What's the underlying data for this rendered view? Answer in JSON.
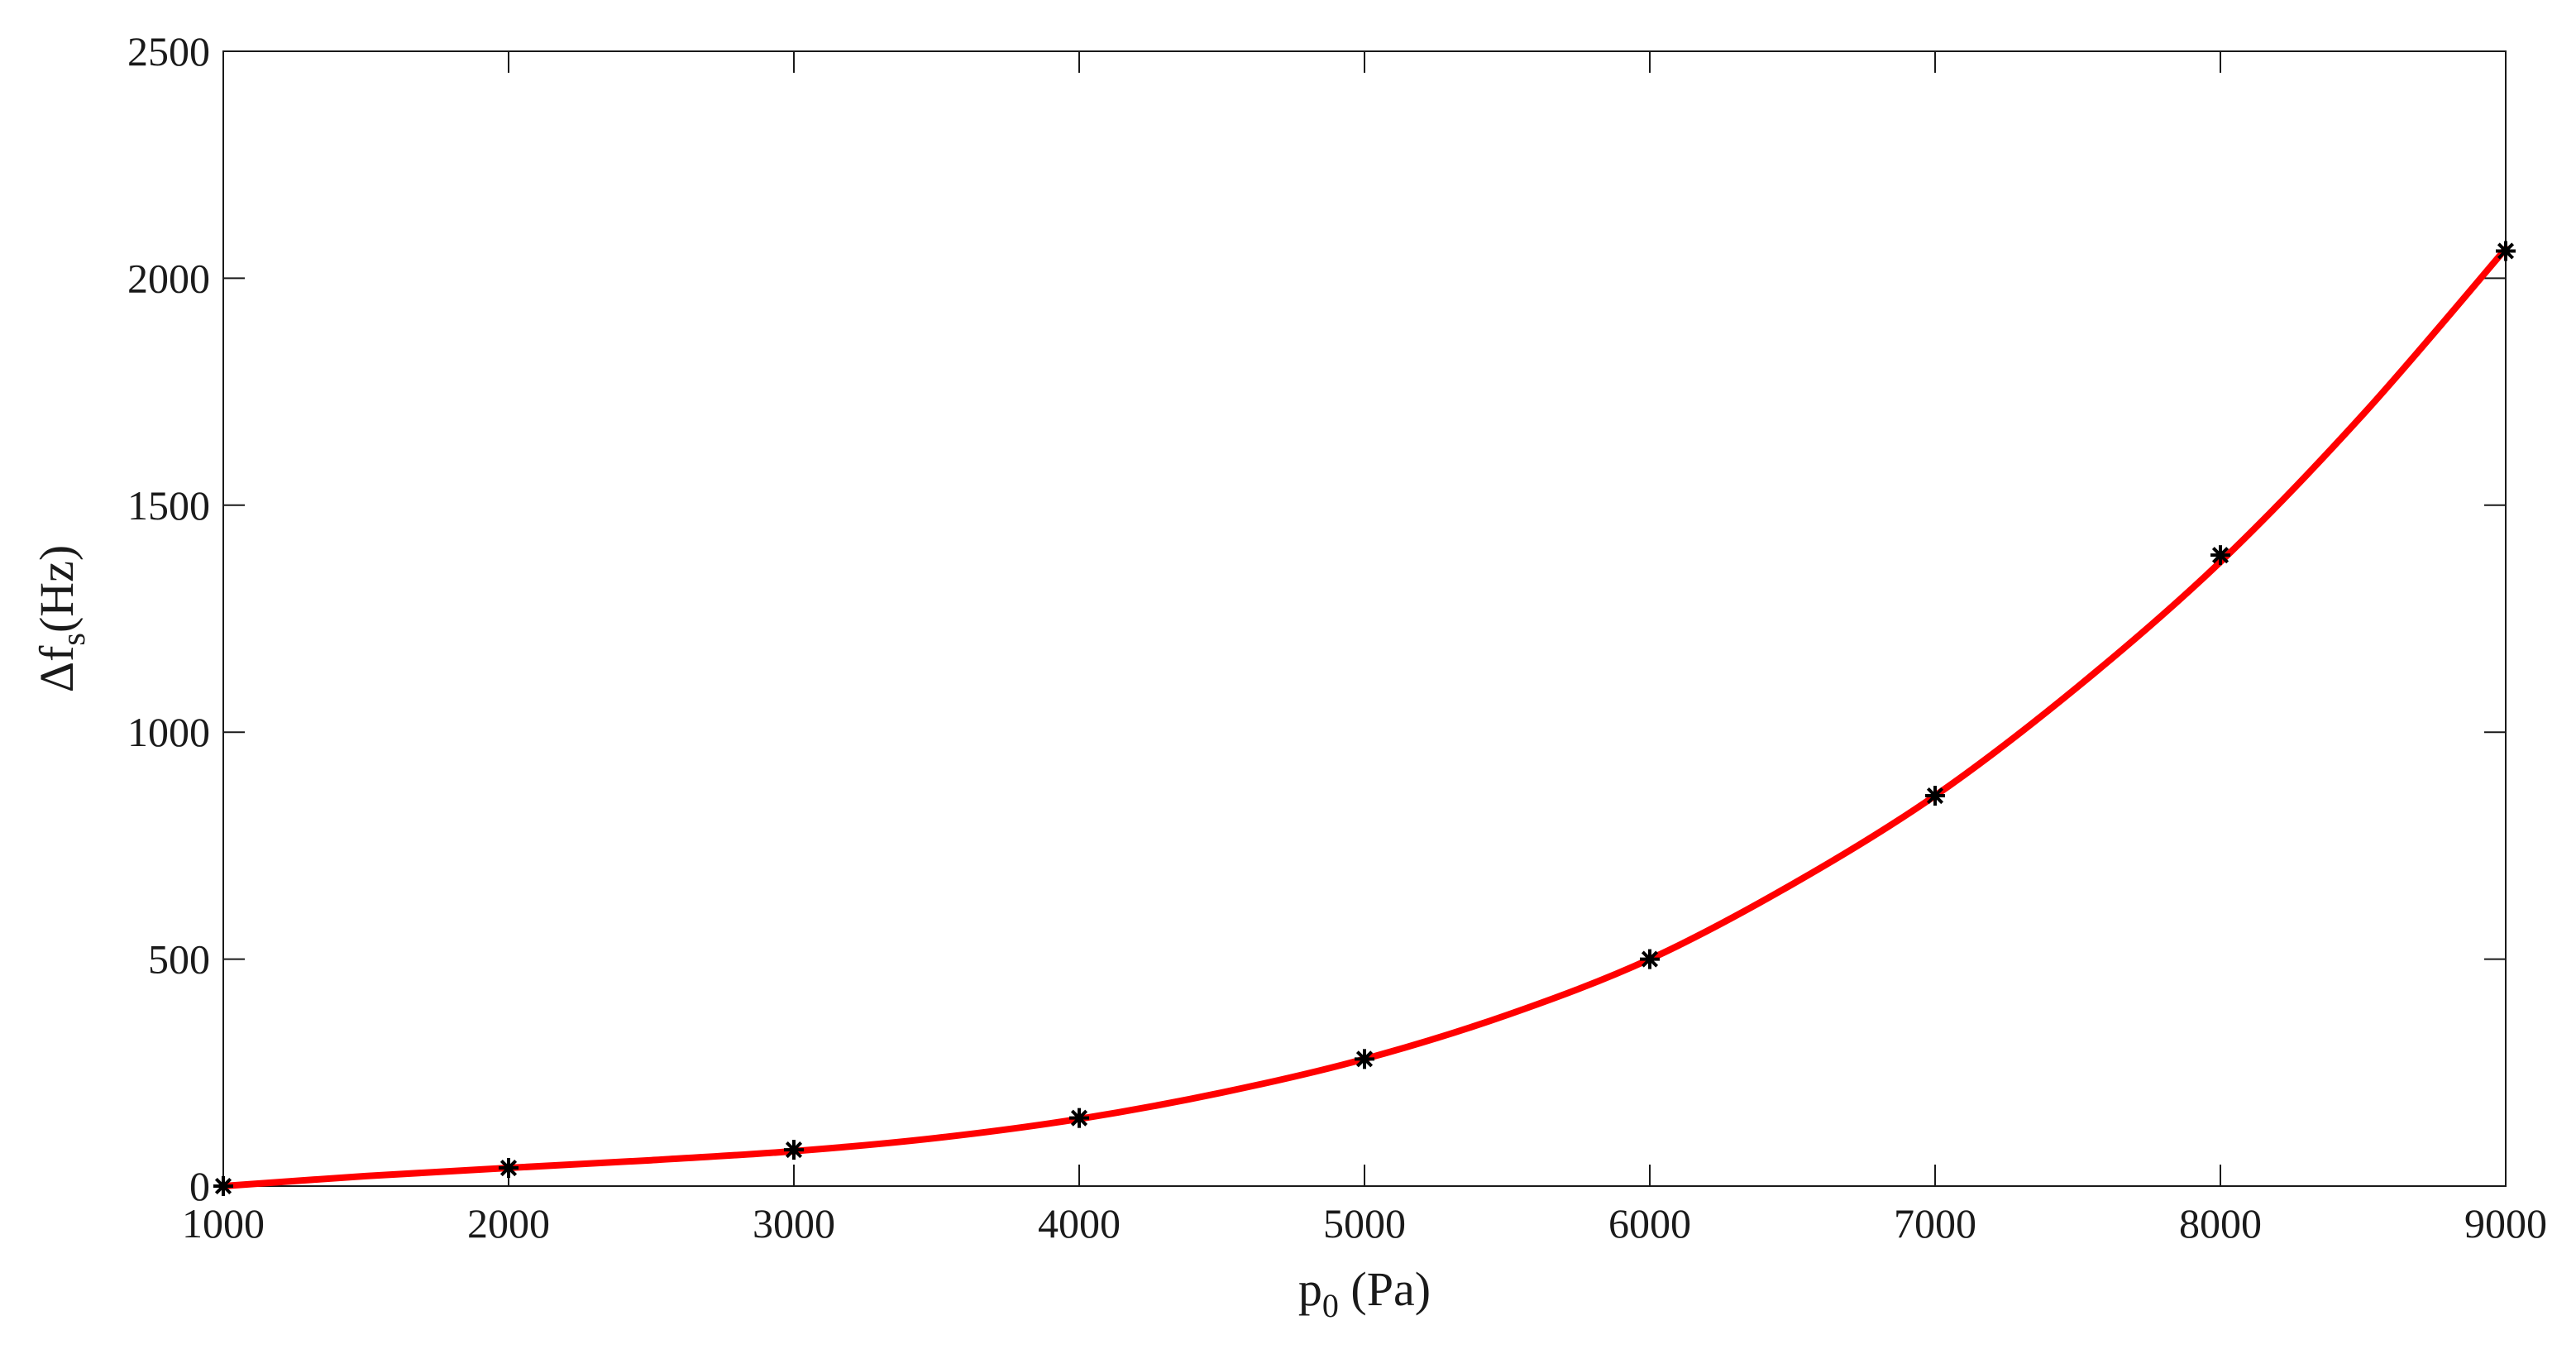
{
  "chart_data": {
    "type": "scatter",
    "title": "",
    "xlabel": {
      "prefix": "p",
      "sub": "0",
      "suffix": " (Pa)"
    },
    "ylabel": {
      "prefix": "Δf",
      "sub": "s",
      "suffix": "(Hz)"
    },
    "xlim": [
      1000,
      9000
    ],
    "ylim": [
      0,
      2500
    ],
    "xticks": [
      1000,
      2000,
      3000,
      4000,
      5000,
      6000,
      7000,
      8000,
      9000
    ],
    "yticks": [
      0,
      500,
      1000,
      1500,
      2000,
      2500
    ],
    "grid": false,
    "legend": "none",
    "series": [
      {
        "kind": "markers",
        "marker": "asterisk",
        "color": "#000000",
        "x": [
          1000,
          2000,
          3000,
          4000,
          5000,
          6000,
          7000,
          8000,
          9000
        ],
        "y": [
          0,
          40,
          80,
          150,
          280,
          500,
          860,
          1390,
          2060
        ]
      },
      {
        "kind": "fit-line",
        "color": "#ff0000",
        "x": [
          1000,
          1500,
          2000,
          2500,
          3000,
          3500,
          4000,
          4500,
          5000,
          5500,
          6000,
          6500,
          7000,
          7500,
          8000,
          8500,
          9000
        ],
        "y": [
          0,
          22,
          40,
          57,
          77,
          106,
          148,
          206,
          280,
          377,
          500,
          665,
          860,
          1100,
          1375,
          1700,
          2065
        ]
      }
    ]
  }
}
